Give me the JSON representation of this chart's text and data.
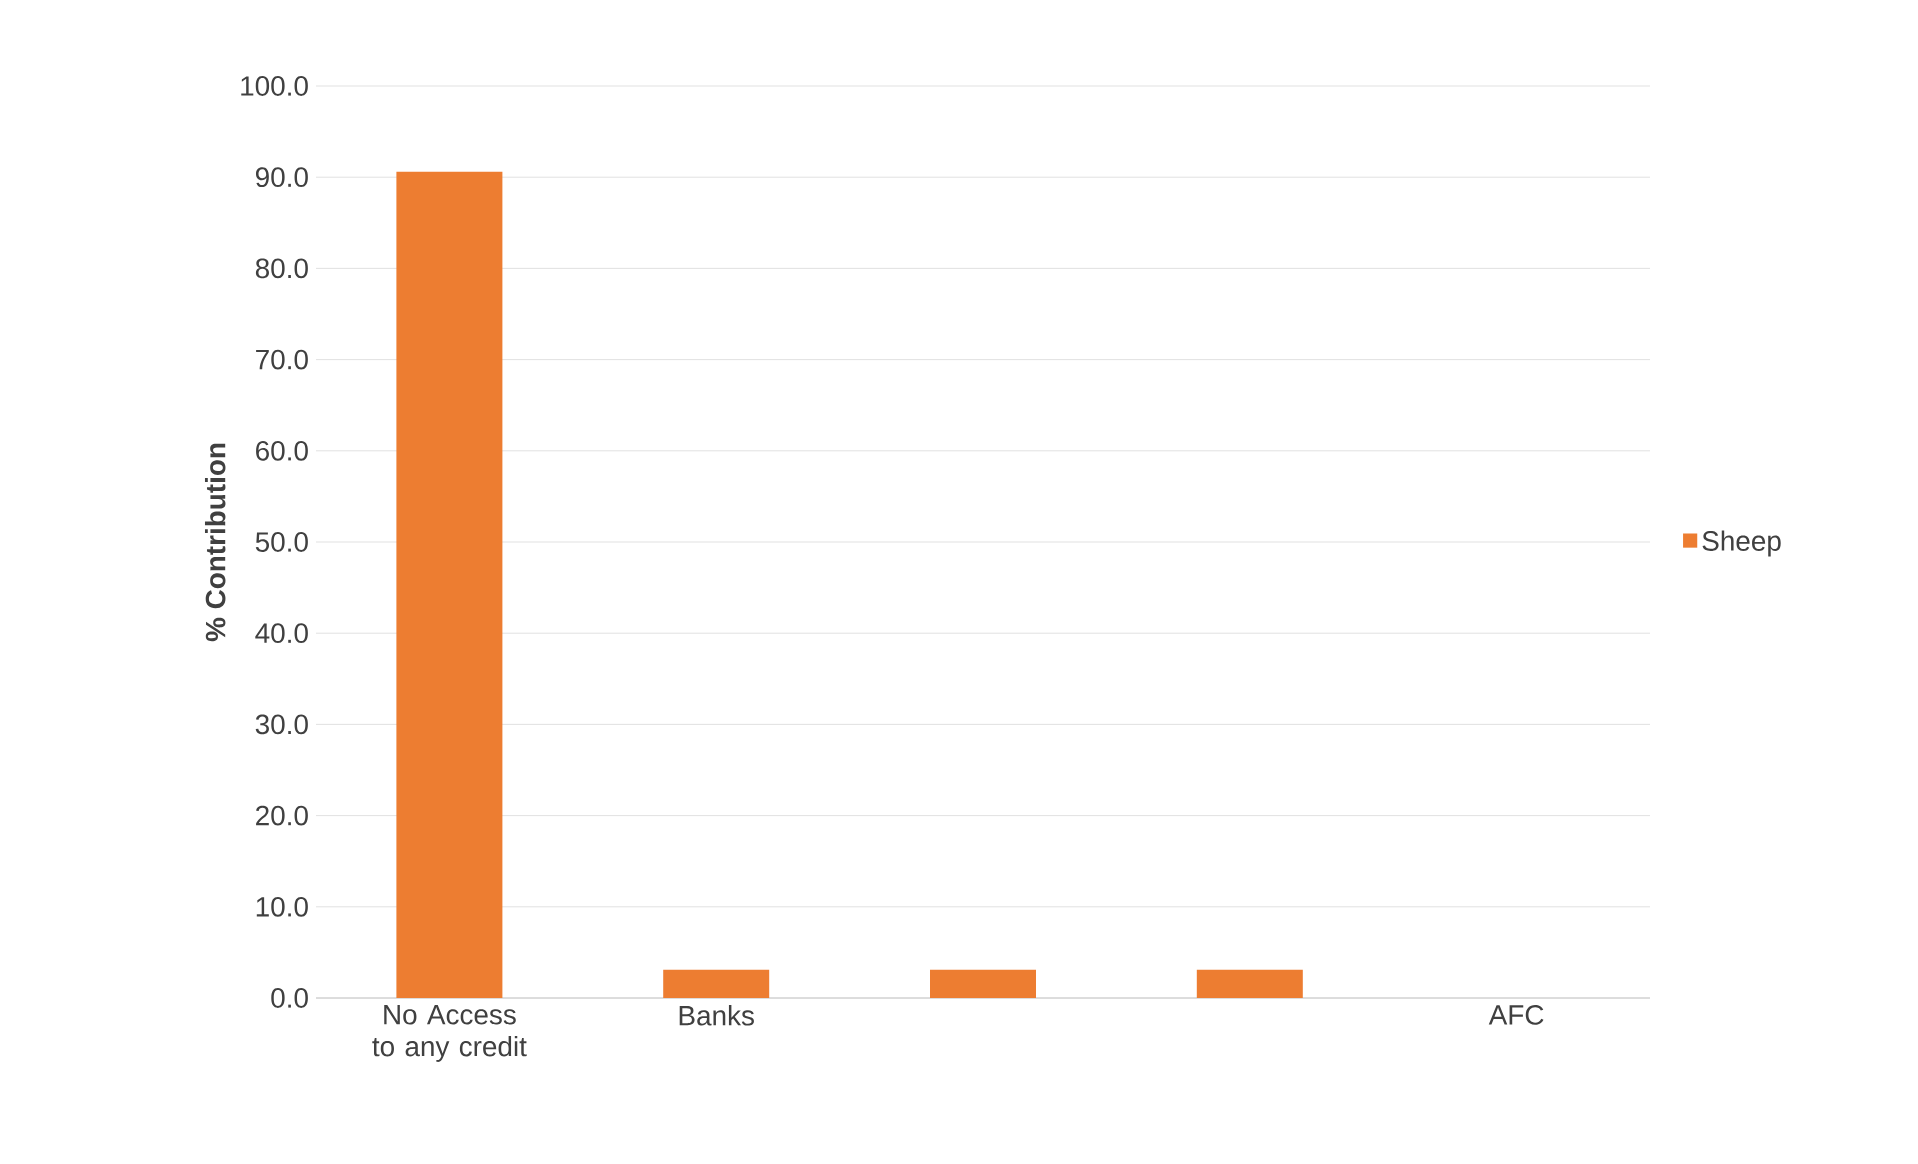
{
  "chart_data": {
    "type": "bar",
    "ylabel": "% Contribution",
    "categories": [
      "No Access to any credit",
      "Banks",
      null,
      null,
      "AFC"
    ],
    "series": [
      {
        "name": "Sheep",
        "color": "#ed7d31",
        "values": [
          90.6,
          3.1,
          3.1,
          3.1,
          0
        ]
      }
    ],
    "ylim": [
      0,
      100
    ],
    "yticks": [
      {
        "value": 0,
        "label": "0.0"
      },
      {
        "value": 10,
        "label": "10.0"
      },
      {
        "value": 20,
        "label": "20.0"
      },
      {
        "value": 30,
        "label": "30.0"
      },
      {
        "value": 40,
        "label": "40.0"
      },
      {
        "value": 50,
        "label": "50.0"
      },
      {
        "value": 60,
        "label": "60.0"
      },
      {
        "value": 70,
        "label": "70.0"
      },
      {
        "value": 80,
        "label": "80.0"
      },
      {
        "value": 90,
        "label": "90.0"
      },
      {
        "value": 100,
        "label": "100.0"
      }
    ],
    "grid": "y",
    "legend": "right"
  }
}
